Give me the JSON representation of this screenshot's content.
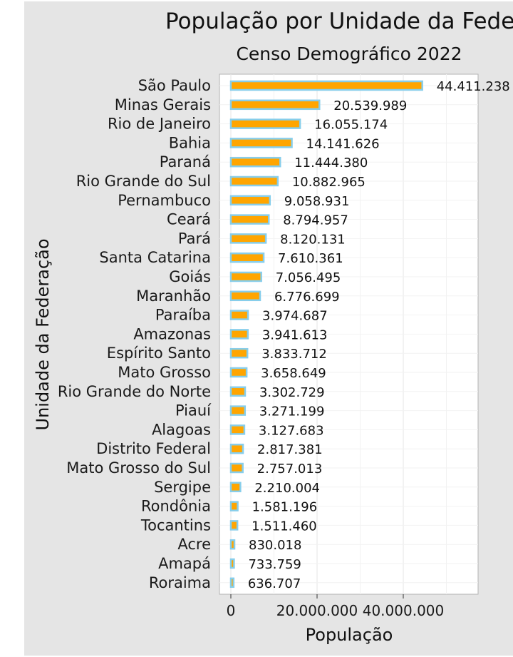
{
  "chart_data": {
    "type": "bar",
    "orientation": "horizontal",
    "title": "População por Unidade da Federação",
    "subtitle": "Censo Demográfico 2022",
    "xlabel": "População",
    "ylabel": "Unidade da Federação",
    "xlim": [
      0,
      57500000
    ],
    "x_ticks": [
      0,
      20000000,
      40000000
    ],
    "x_tick_labels": [
      "0",
      "20.000.000",
      "40.000.000"
    ],
    "grid": true,
    "bar_fill": "#ffa500",
    "bar_stroke": "#87ceeb",
    "background": "#e5e5e5",
    "plot_background": "#ffffff",
    "categories": [
      "São Paulo",
      "Minas Gerais",
      "Rio de Janeiro",
      "Bahia",
      "Paraná",
      "Rio Grande do Sul",
      "Pernambuco",
      "Ceará",
      "Pará",
      "Santa Catarina",
      "Goiás",
      "Maranhão",
      "Paraíba",
      "Amazonas",
      "Espírito Santo",
      "Mato Grosso",
      "Rio Grande do Norte",
      "Piauí",
      "Alagoas",
      "Distrito Federal",
      "Mato Grosso do Sul",
      "Sergipe",
      "Rondônia",
      "Tocantins",
      "Acre",
      "Amapá",
      "Roraima"
    ],
    "values": [
      44411238,
      20539989,
      16055174,
      14141626,
      11444380,
      10882965,
      9058931,
      8794957,
      8120131,
      7610361,
      7056495,
      6776699,
      3974687,
      3941613,
      3833712,
      3658649,
      3302729,
      3271199,
      3127683,
      2817381,
      2757013,
      2210004,
      1581196,
      1511460,
      830018,
      733759,
      636707
    ],
    "value_labels": [
      "44.411.238",
      "20.539.989",
      "16.055.174",
      "14.141.626",
      "11.444.380",
      "10.882.965",
      "9.058.931",
      "8.794.957",
      "8.120.131",
      "7.610.361",
      "7.056.495",
      "6.776.699",
      "3.974.687",
      "3.941.613",
      "3.833.712",
      "3.658.649",
      "3.302.729",
      "3.271.199",
      "3.127.683",
      "2.817.381",
      "2.757.013",
      "2.210.004",
      "1.581.196",
      "1.511.460",
      "830.018",
      "733.759",
      "636.707"
    ]
  }
}
